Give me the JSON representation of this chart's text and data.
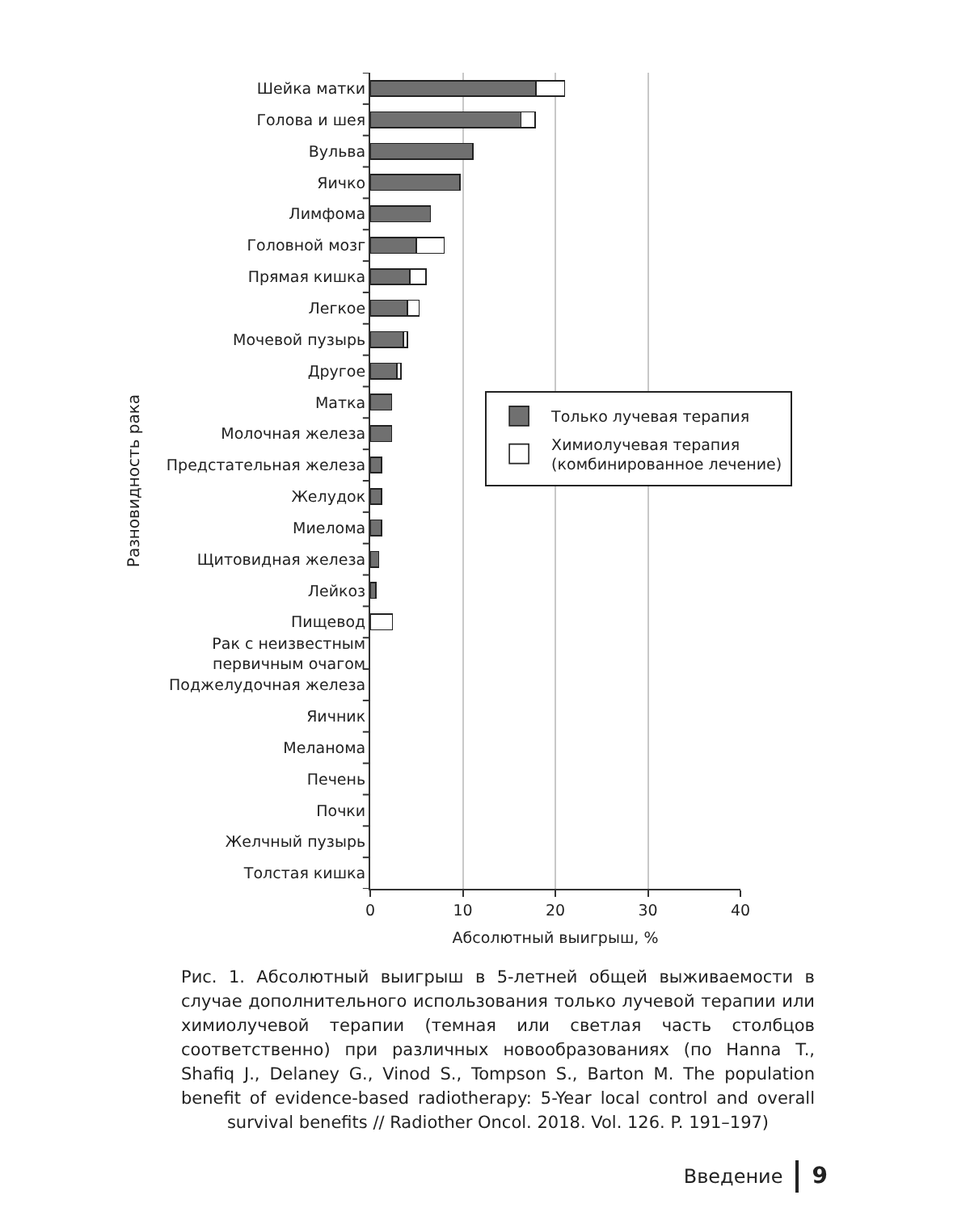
{
  "chart_data": {
    "type": "bar",
    "orientation": "horizontal",
    "stacked": true,
    "categories": [
      "Шейка матки",
      "Голова и шея",
      "Вульва",
      "Яичко",
      "Лимфома",
      "Головной мозг",
      "Прямая кишка",
      "Легкое",
      "Мочевой пузырь",
      "Другое",
      "Матка",
      "Молочная железа",
      "Предстательная железа",
      "Желудок",
      "Миелома",
      "Щитовидная железа",
      "Лейкоз",
      "Пищевод",
      "Рак с неизвестным первичным очагом",
      "Поджелудочная железа",
      "Яичник",
      "Меланома",
      "Печень",
      "Почки",
      "Желчный пузырь",
      "Толстая кишка"
    ],
    "series": [
      {
        "name": "Только лучевая терапия",
        "color": "#707070",
        "values": [
          17.9,
          16.3,
          11.1,
          9.7,
          6.5,
          5.0,
          4.3,
          4.0,
          3.6,
          2.9,
          2.3,
          2.3,
          1.2,
          1.2,
          1.2,
          0.9,
          0.6,
          0,
          0,
          0,
          0,
          0,
          0,
          0,
          0,
          0
        ]
      },
      {
        "name": "Химиолучевая терапия (комбинированное лечение)",
        "color": "#ffffff",
        "values": [
          3.1,
          1.5,
          0,
          0,
          0,
          3.0,
          1.7,
          1.3,
          0.4,
          0.4,
          0,
          0,
          0,
          0,
          0,
          0,
          0,
          2.4,
          0,
          0,
          0,
          0,
          0,
          0,
          0,
          0
        ]
      }
    ],
    "xlabel": "Абсолютный выигрыш, %",
    "ylabel": "Разновидность рака",
    "xlim": [
      0,
      40
    ],
    "xticks": [
      0,
      10,
      20,
      30,
      40
    ],
    "grid": "x",
    "legend": "right",
    "annotations": [
      "Рис. 1. Абсолютный выигрыш в 5-летней общей выживаемости в случае дополнительного использования только лучевой терапии или химиолучевой терапии (темная или светлая часть столбцов соответственно) при различных новообразованиях (по Hanna T., Shafiq J., Delaney G., Vinod S., Tompson S., Barton M. The population benefit of evidence-based radiotherapy: 5-Year local control and overall survival benefits // Radiother Oncol. 2018. Vol. 126. P. 191–197)",
      "Введение",
      "9"
    ]
  }
}
